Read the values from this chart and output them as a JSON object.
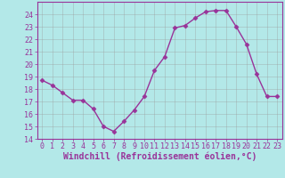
{
  "x": [
    0,
    1,
    2,
    3,
    4,
    5,
    6,
    7,
    8,
    9,
    10,
    11,
    12,
    13,
    14,
    15,
    16,
    17,
    18,
    19,
    20,
    21,
    22,
    23
  ],
  "y": [
    18.7,
    18.3,
    17.7,
    17.1,
    17.1,
    16.4,
    15.0,
    14.6,
    15.4,
    16.3,
    17.4,
    19.5,
    20.6,
    22.9,
    23.1,
    23.7,
    24.2,
    24.3,
    24.3,
    23.0,
    21.6,
    19.2,
    17.4,
    17.4
  ],
  "line_color": "#993399",
  "marker": "D",
  "marker_size": 2.5,
  "xlim": [
    -0.5,
    23.5
  ],
  "ylim": [
    14,
    25
  ],
  "yticks": [
    14,
    15,
    16,
    17,
    18,
    19,
    20,
    21,
    22,
    23,
    24
  ],
  "xticks": [
    0,
    1,
    2,
    3,
    4,
    5,
    6,
    7,
    8,
    9,
    10,
    11,
    12,
    13,
    14,
    15,
    16,
    17,
    18,
    19,
    20,
    21,
    22,
    23
  ],
  "xlabel": "Windchill (Refroidissement éolien,°C)",
  "background_color": "#b3e8e8",
  "grid_color": "#999999",
  "text_color": "#993399",
  "tick_label_fontsize": 6.0,
  "xlabel_fontsize": 7.0,
  "spine_color": "#993399"
}
